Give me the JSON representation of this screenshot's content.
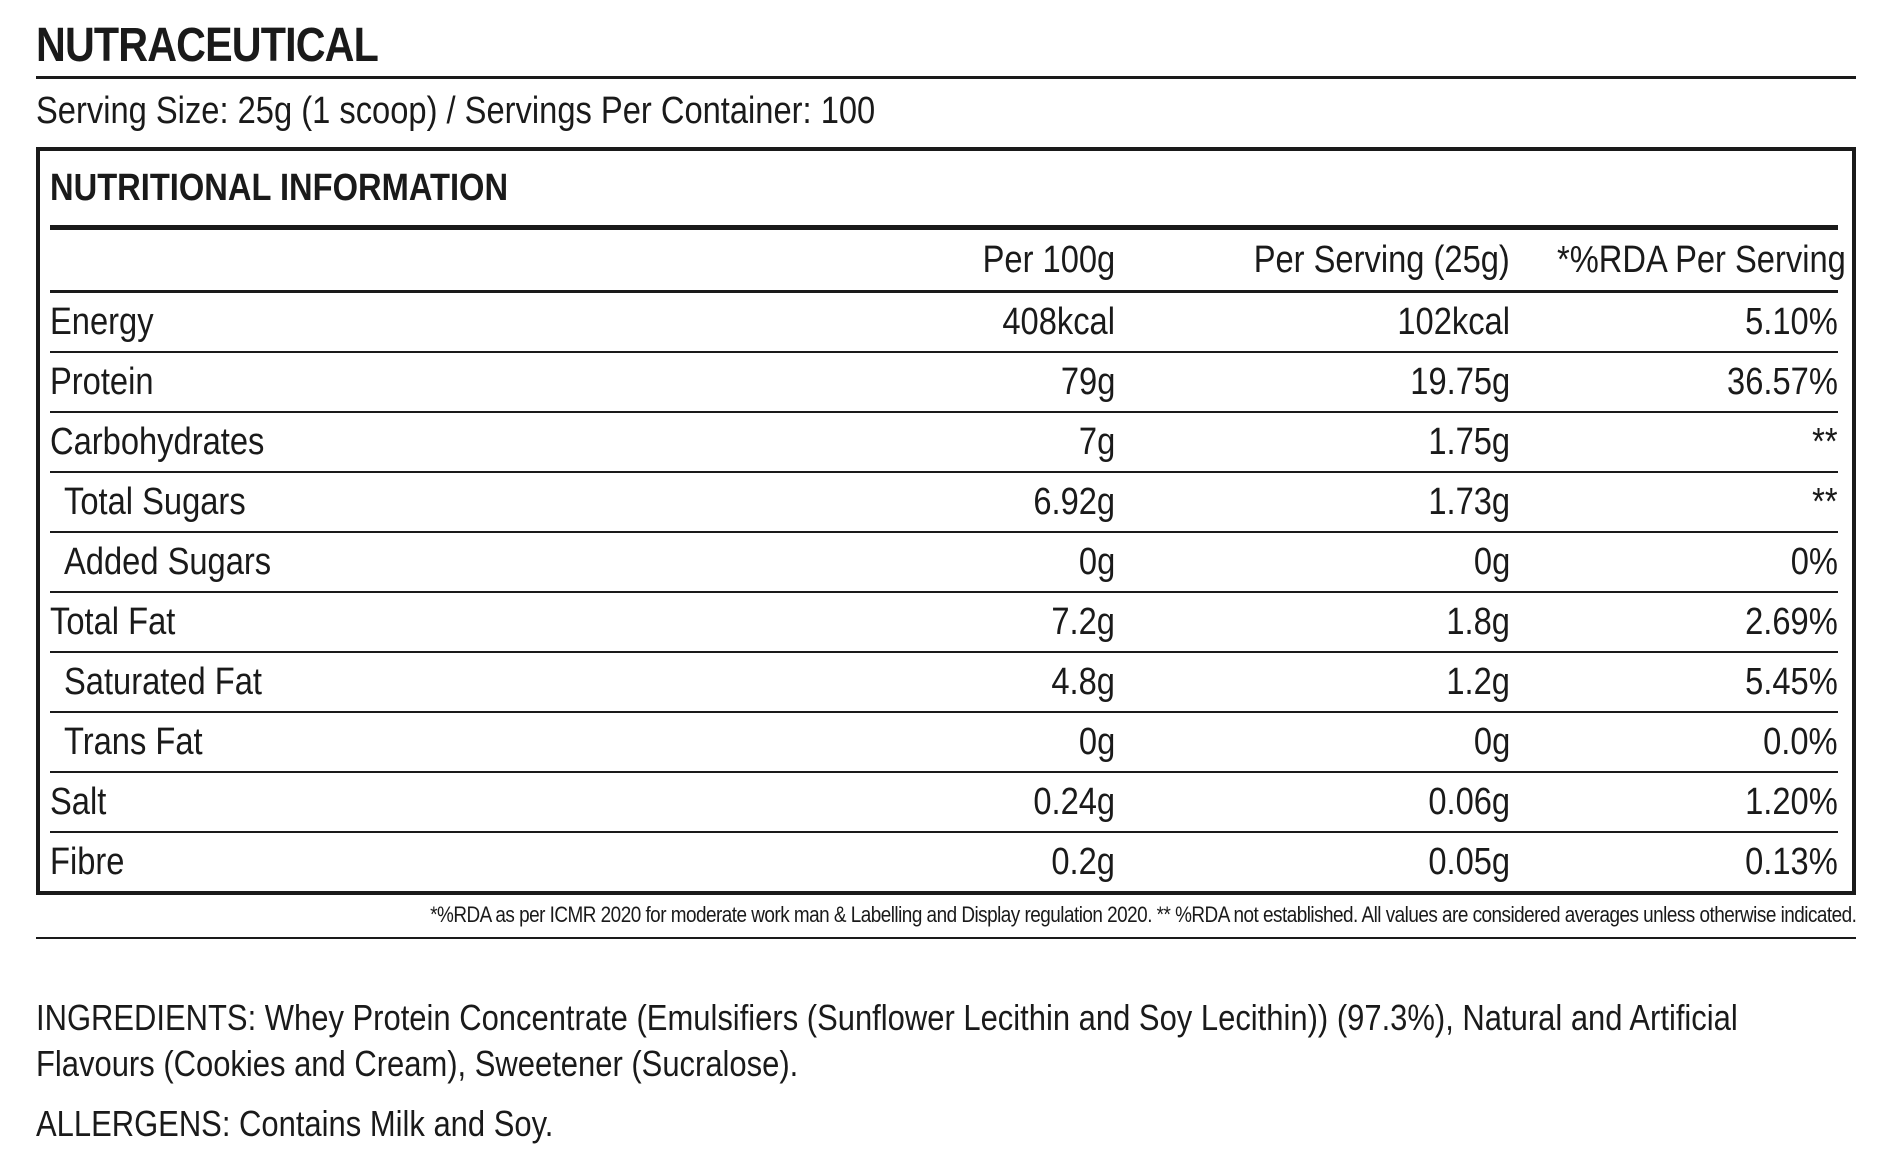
{
  "brand": "NUTRACEUTICAL",
  "serving_line": "Serving Size: 25g (1 scoop)  / Servings Per Container: 100",
  "panel": {
    "title": "NUTRITIONAL INFORMATION",
    "headers": [
      "",
      "Per 100g",
      "Per Serving (25g)",
      "*%RDA Per Serving"
    ],
    "rows": [
      {
        "name": "Energy",
        "per100": "408kcal",
        "serving": "102kcal",
        "rda": "5.10%",
        "indent": false
      },
      {
        "name": "Protein",
        "per100": "79g",
        "serving": "19.75g",
        "rda": "36.57%",
        "indent": false
      },
      {
        "name": "Carbohydrates",
        "per100": "7g",
        "serving": "1.75g",
        "rda": "**",
        "indent": false
      },
      {
        "name": "Total Sugars",
        "per100": "6.92g",
        "serving": "1.73g",
        "rda": "**",
        "indent": true
      },
      {
        "name": "Added Sugars",
        "per100": "0g",
        "serving": "0g",
        "rda": "0%",
        "indent": true
      },
      {
        "name": "Total Fat",
        "per100": "7.2g",
        "serving": "1.8g",
        "rda": "2.69%",
        "indent": false
      },
      {
        "name": "Saturated Fat",
        "per100": "4.8g",
        "serving": "1.2g",
        "rda": "5.45%",
        "indent": true
      },
      {
        "name": "Trans Fat",
        "per100": "0g",
        "serving": "0g",
        "rda": "0.0%",
        "indent": true
      },
      {
        "name": "Salt",
        "per100": "0.24g",
        "serving": "0.06g",
        "rda": "1.20%",
        "indent": false
      },
      {
        "name": "Fibre",
        "per100": "0.2g",
        "serving": "0.05g",
        "rda": "0.13%",
        "indent": false
      }
    ]
  },
  "footnote": "*%RDA as per ICMR 2020 for moderate work man & Labelling and Display regulation 2020. ** %RDA not established. All values are considered averages unless otherwise indicated.",
  "ingredients": "INGREDIENTS: Whey Protein Concentrate (Emulsifiers (Sunflower Lecithin and Soy Lecithin)) (97.3%), Natural and Artificial Flavours (Cookies and Cream), Sweetener (Sucralose).",
  "allergens": "ALLERGENS: Contains Milk and Soy."
}
